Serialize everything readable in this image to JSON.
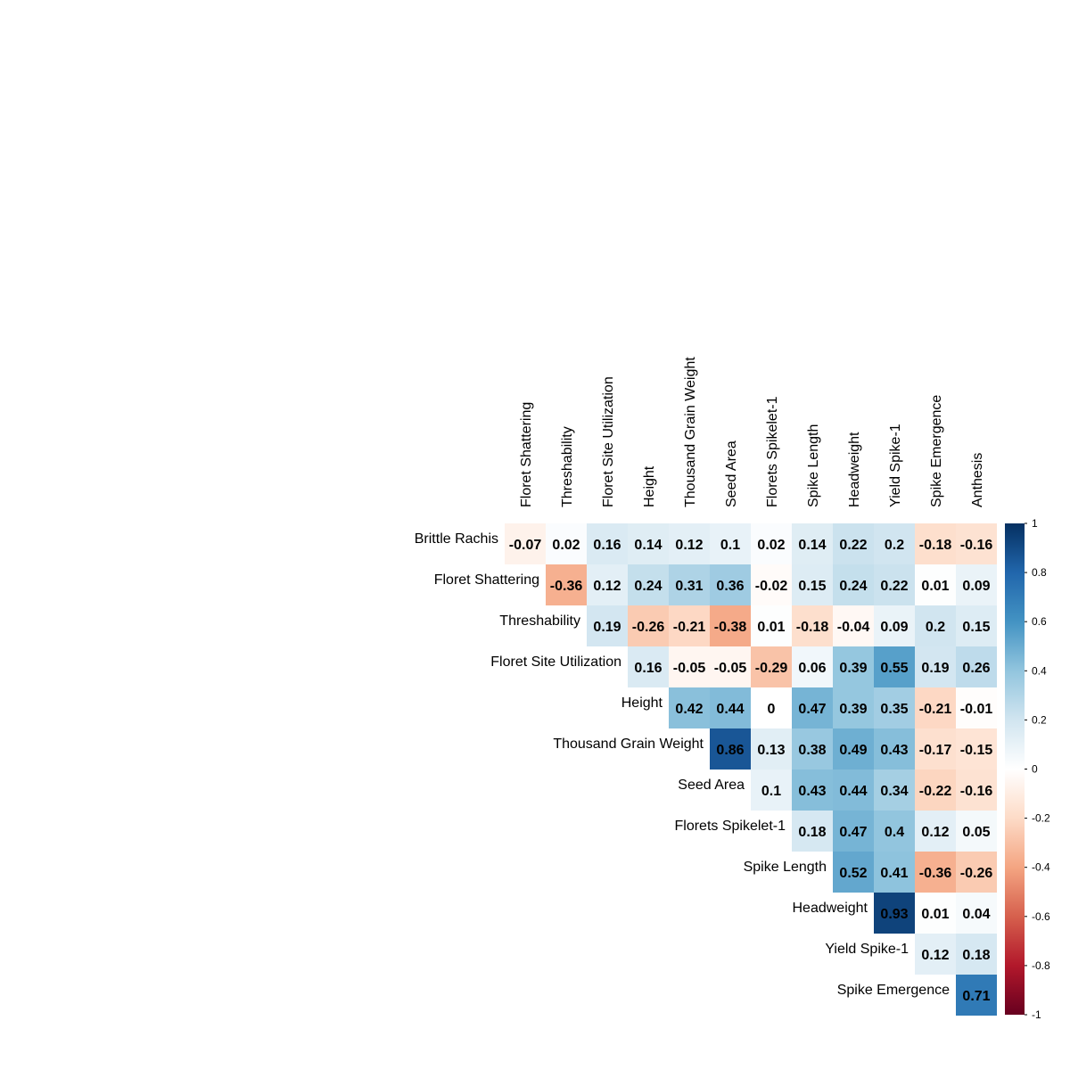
{
  "chart_data": {
    "type": "heatmap",
    "title": "",
    "row_labels": [
      "Brittle Rachis",
      "Floret Shattering",
      "Threshability",
      "Floret Site Utilization",
      "Height",
      "Thousand Grain Weight",
      "Seed Area",
      "Florets Spikelet-1",
      "Spike Length",
      "Headweight",
      "Yield Spike-1",
      "Spike Emergence"
    ],
    "column_labels": [
      "Floret Shattering",
      "Threshability",
      "Floret Site Utilization",
      "Height",
      "Thousand Grain Weight",
      "Seed Area",
      "Florets Spikelet-1",
      "Spike Length",
      "Headweight",
      "Yield Spike-1",
      "Spike Emergence",
      "Anthesis"
    ],
    "values": [
      [
        -0.07,
        0.02,
        0.16,
        0.14,
        0.12,
        0.1,
        0.02,
        0.14,
        0.22,
        0.2,
        -0.18,
        -0.16
      ],
      [
        null,
        -0.36,
        0.12,
        0.24,
        0.31,
        0.36,
        -0.02,
        0.15,
        0.24,
        0.22,
        0.01,
        0.09
      ],
      [
        null,
        null,
        0.19,
        -0.26,
        -0.21,
        -0.38,
        0.01,
        -0.18,
        -0.04,
        0.09,
        0.2,
        0.15
      ],
      [
        null,
        null,
        null,
        0.16,
        -0.05,
        -0.05,
        -0.29,
        0.06,
        0.39,
        0.55,
        0.19,
        0.26
      ],
      [
        null,
        null,
        null,
        null,
        0.42,
        0.44,
        0,
        0.47,
        0.39,
        0.35,
        -0.21,
        -0.01
      ],
      [
        null,
        null,
        null,
        null,
        null,
        0.86,
        0.13,
        0.38,
        0.49,
        0.43,
        -0.17,
        -0.15
      ],
      [
        null,
        null,
        null,
        null,
        null,
        null,
        0.1,
        0.43,
        0.44,
        0.34,
        -0.22,
        -0.16
      ],
      [
        null,
        null,
        null,
        null,
        null,
        null,
        null,
        0.18,
        0.47,
        0.4,
        0.12,
        0.05
      ],
      [
        null,
        null,
        null,
        null,
        null,
        null,
        null,
        null,
        0.52,
        0.41,
        -0.36,
        -0.26
      ],
      [
        null,
        null,
        null,
        null,
        null,
        null,
        null,
        null,
        null,
        0.93,
        0.01,
        0.04
      ],
      [
        null,
        null,
        null,
        null,
        null,
        null,
        null,
        null,
        null,
        null,
        0.12,
        0.18
      ],
      [
        null,
        null,
        null,
        null,
        null,
        null,
        null,
        null,
        null,
        null,
        null,
        0.71
      ]
    ],
    "color_scale": {
      "range": [
        -1,
        1
      ],
      "ticks": [
        "1",
        "0.8",
        "0.6",
        "0.4",
        "0.2",
        "0",
        "-0.2",
        "-0.4",
        "-0.6",
        "-0.8",
        "-1"
      ],
      "stops": [
        "#67001F",
        "#B2182B",
        "#D6604D",
        "#F4A582",
        "#FDDBC7",
        "#FFFFFF",
        "#D1E5F0",
        "#92C5DE",
        "#4393C3",
        "#2166AC",
        "#053061"
      ]
    },
    "grid": false,
    "legend_position": "right"
  }
}
